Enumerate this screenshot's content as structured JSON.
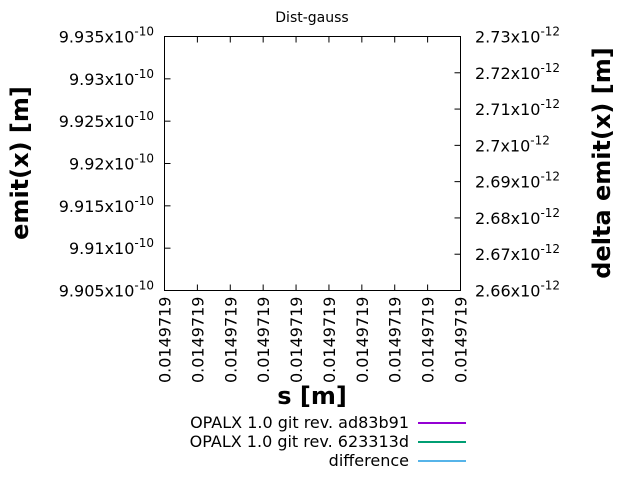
{
  "chart_data": {
    "type": "line",
    "title": "Dist-gauss",
    "xlabel": "s [m]",
    "ylabel": "emit(x) [m]",
    "y2label": "delta emit(x) [m]",
    "x_tick_labels": [
      "0.0149719",
      "0.0149719",
      "0.0149719",
      "0.0149719",
      "0.0149719",
      "0.0149719",
      "0.0149719",
      "0.0149719",
      "0.0149719",
      "0.0149719"
    ],
    "y_ticks": [
      {
        "mant": "9.905x10",
        "exp": "-10"
      },
      {
        "mant": "9.91x10",
        "exp": "-10"
      },
      {
        "mant": "9.915x10",
        "exp": "-10"
      },
      {
        "mant": "9.92x10",
        "exp": "-10"
      },
      {
        "mant": "9.925x10",
        "exp": "-10"
      },
      {
        "mant": "9.93x10",
        "exp": "-10"
      },
      {
        "mant": "9.935x10",
        "exp": "-10"
      }
    ],
    "y2_ticks": [
      {
        "mant": "2.66x10",
        "exp": "-12"
      },
      {
        "mant": "2.67x10",
        "exp": "-12"
      },
      {
        "mant": "2.68x10",
        "exp": "-12"
      },
      {
        "mant": "2.69x10",
        "exp": "-12"
      },
      {
        "mant": "2.7x10",
        "exp": "-12"
      },
      {
        "mant": "2.71x10",
        "exp": "-12"
      },
      {
        "mant": "2.72x10",
        "exp": "-12"
      },
      {
        "mant": "2.73x10",
        "exp": "-12"
      }
    ],
    "ylim": [
      9.905e-10,
      9.935e-10
    ],
    "y2lim": [
      2.66e-12,
      2.73e-12
    ],
    "grid": false,
    "legend_placement": "bottom",
    "series": [
      {
        "name": "OPALX 1.0 git rev. ad83b91",
        "color": "#9400d3",
        "x": [],
        "y": []
      },
      {
        "name": "OPALX 1.0 git rev. 623313d",
        "color": "#009e73",
        "x": [],
        "y": []
      },
      {
        "name": "difference",
        "color": "#56b4e9",
        "x": [],
        "y": []
      }
    ]
  }
}
